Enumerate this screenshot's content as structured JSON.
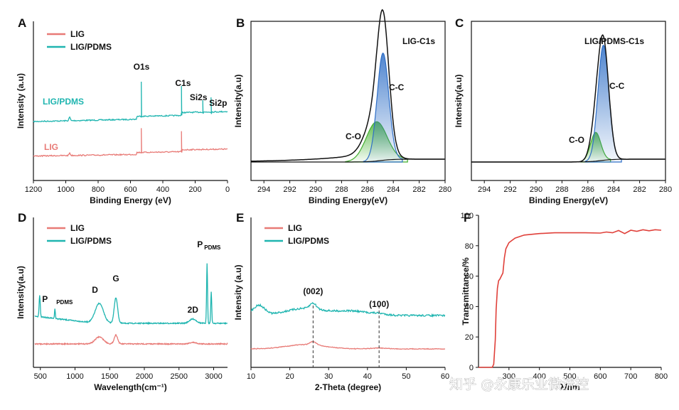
{
  "colors": {
    "lig": "#e87a76",
    "pdms": "#1fb5b0",
    "transmit": "#e0403a",
    "cc": "#2f6fc7",
    "co": "#44b030",
    "env": "#111111"
  },
  "watermark": "知乎 @永康乐业微流控",
  "chart_data": [
    {
      "panel": "A",
      "type": "line",
      "xlabel": "Binding Energy (eV)",
      "ylabel": "Intensity (a.u)",
      "xlim": [
        1200,
        0
      ],
      "xreversed": true,
      "xticks": [
        1200,
        1000,
        800,
        600,
        400,
        200,
        0
      ],
      "legend": [
        "LIG",
        "LIG/PDMS"
      ],
      "series_labels": [
        "LIG",
        "LIG/PDMS"
      ],
      "peaks": [
        {
          "label": "O1s",
          "x": 532
        },
        {
          "label": "C1s",
          "x": 284
        },
        {
          "label": "Si2s",
          "x": 153
        },
        {
          "label": "Si2p",
          "x": 102
        }
      ]
    },
    {
      "panel": "B",
      "type": "line",
      "title": "LIG-C1s",
      "xlabel": "Binding Energy(eV)",
      "ylabel": "Intensity(a.u)",
      "xlim": [
        295,
        280
      ],
      "xreversed": true,
      "xticks": [
        294,
        292,
        290,
        288,
        286,
        284,
        282,
        280
      ],
      "components": [
        {
          "label": "C-C",
          "center": 284.8,
          "height": 0.82,
          "width": 0.45
        },
        {
          "label": "C-O",
          "center": 285.3,
          "height": 0.3,
          "width": 0.8
        }
      ]
    },
    {
      "panel": "C",
      "type": "line",
      "title": "LIG/PDMS-C1s",
      "xlabel": "Binding Energy(eV)",
      "ylabel": "Intensity(a.u)",
      "xlim": [
        295,
        280
      ],
      "xreversed": true,
      "xticks": [
        294,
        292,
        290,
        288,
        286,
        284,
        282,
        280
      ],
      "components": [
        {
          "label": "C-C",
          "center": 284.8,
          "height": 0.88,
          "width": 0.42
        },
        {
          "label": "C-O",
          "center": 285.4,
          "height": 0.22,
          "width": 0.4
        }
      ]
    },
    {
      "panel": "D",
      "type": "line",
      "xlabel": "Wavelength(cm⁻¹)",
      "ylabel": "Intensity(a.u)",
      "xlim": [
        400,
        3200
      ],
      "xticks": [
        500,
        1000,
        1500,
        2000,
        2500,
        3000
      ],
      "legend": [
        "LIG",
        "LIG/PDMS"
      ],
      "peaks": [
        {
          "label": "D",
          "x": 1350
        },
        {
          "label": "G",
          "x": 1590
        },
        {
          "label": "2D",
          "x": 2700
        },
        {
          "label": "P",
          "sub": "PDMS",
          "x": 710
        },
        {
          "label": "P",
          "sub": "PDMS",
          "x": 2905
        }
      ]
    },
    {
      "panel": "E",
      "type": "line",
      "xlabel": "2-Theta (degree)",
      "ylabel": "Intensity (a.u)",
      "xlim": [
        10,
        60
      ],
      "xticks": [
        10,
        20,
        30,
        40,
        50,
        60
      ],
      "legend": [
        "LIG",
        "LIG/PDMS"
      ],
      "peaks": [
        {
          "label": "(002)",
          "x": 26
        },
        {
          "label": "(100)",
          "x": 43
        }
      ]
    },
    {
      "panel": "F",
      "type": "line",
      "xlabel": "λ/nm",
      "ylabel": "Transmittance/%",
      "ylim": [
        0,
        100
      ],
      "yticks": [
        0,
        20,
        40,
        60,
        80,
        100
      ],
      "xlim": [
        200,
        800
      ],
      "xticks": [
        300,
        400,
        500,
        600,
        700,
        800
      ],
      "xtick_labels": [
        "300",
        "400",
        "500",
        "600",
        "700",
        "800"
      ],
      "series": [
        {
          "name": "Transmittance",
          "x": [
            200,
            235,
            245,
            250,
            255,
            258,
            262,
            266,
            270,
            275,
            280,
            285,
            290,
            300,
            320,
            350,
            400,
            450,
            500,
            550,
            600,
            620,
            640,
            660,
            680,
            700,
            720,
            740,
            760,
            780,
            800
          ],
          "y": [
            0,
            0,
            0,
            2,
            18,
            38,
            52,
            57,
            58,
            60,
            62,
            72,
            78,
            82,
            85,
            87,
            88,
            88.5,
            88.5,
            88.5,
            88.3,
            89,
            88.5,
            90,
            88,
            90.2,
            89.5,
            90.5,
            89.8,
            90.5,
            90.2
          ]
        }
      ]
    }
  ]
}
